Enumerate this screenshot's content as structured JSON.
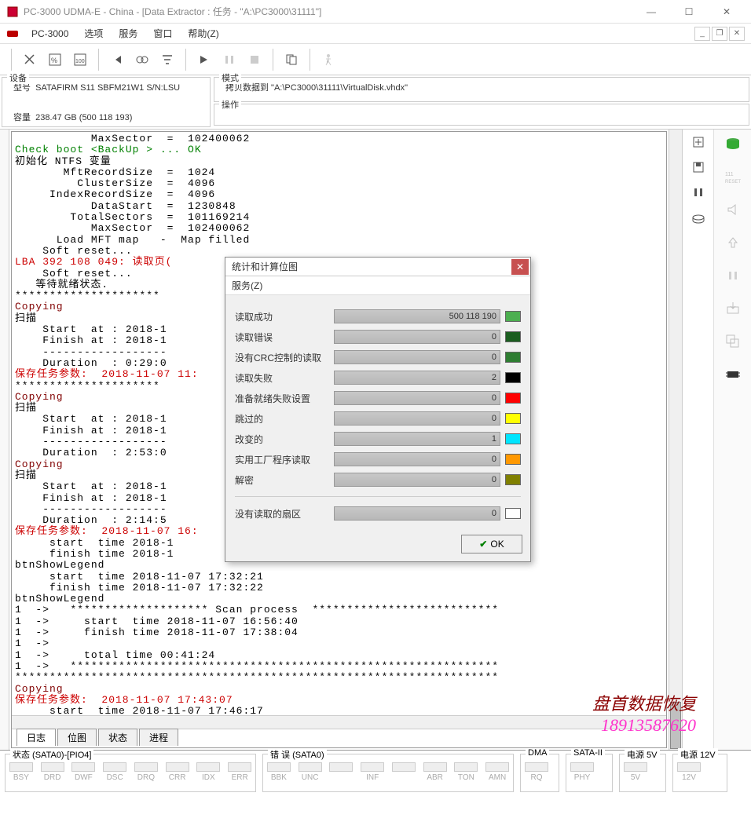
{
  "window": {
    "title": "PC-3000 UDMA-E - China - [Data Extractor : 任务 - \"A:\\PC3000\\31111\"]",
    "min": "—",
    "max": "☐",
    "close": "✕"
  },
  "menu": {
    "app": "PC-3000",
    "items": [
      "选项",
      "服务",
      "窗口",
      "帮助(Z)"
    ]
  },
  "device": {
    "legend": "设备",
    "model_label": "型号",
    "model": "SATAFIRM  S11 SBFM21W1 S/N:LSU",
    "capacity_label": "容量",
    "capacity": "238.47 GB (500 118 193)"
  },
  "mode": {
    "legend": "模式",
    "line": "拷贝数据到 \"A:\\PC3000\\31111\\VirtualDisk.vhdx\"",
    "op_legend": "操作"
  },
  "log": [
    {
      "t": "           MaxSector  =  102400062",
      "c": ""
    },
    {
      "t": "Check boot <BackUp > ... OK",
      "c": "green"
    },
    {
      "t": "初始化 NTFS 变量",
      "c": ""
    },
    {
      "t": "       MftRecordSize  =  1024",
      "c": ""
    },
    {
      "t": "         ClusterSize  =  4096",
      "c": ""
    },
    {
      "t": "     IndexRecordSize  =  4096",
      "c": ""
    },
    {
      "t": "           DataStart  =  1230848",
      "c": ""
    },
    {
      "t": "        TotalSectors  =  101169214",
      "c": ""
    },
    {
      "t": "           MaxSector  =  102400062",
      "c": ""
    },
    {
      "t": "      Load MFT map   -  Map filled",
      "c": ""
    },
    {
      "t": "    Soft reset...",
      "c": ""
    },
    {
      "t": "LBA 392 108 049: 读取页(                                  4E); Operati",
      "c": "red"
    },
    {
      "t": "",
      "c": ""
    },
    {
      "t": "    Soft reset...",
      "c": ""
    },
    {
      "t": "   等待就绪状态.",
      "c": ""
    },
    {
      "t": "*********************                                    **************",
      "c": ""
    },
    {
      "t": "Copying",
      "c": "maroon"
    },
    {
      "t": "扫描",
      "c": ""
    },
    {
      "t": "    Start  at : 2018-1",
      "c": ""
    },
    {
      "t": "    Finish at : 2018-1",
      "c": ""
    },
    {
      "t": "    ------------------",
      "c": ""
    },
    {
      "t": "    Duration  : 0:29:0",
      "c": ""
    },
    {
      "t": "保存任务参数:  2018-11-07 11:",
      "c": "red"
    },
    {
      "t": "*********************                                    **************",
      "c": ""
    },
    {
      "t": "Copying",
      "c": "maroon"
    },
    {
      "t": "扫描",
      "c": ""
    },
    {
      "t": "    Start  at : 2018-1",
      "c": ""
    },
    {
      "t": "    Finish at : 2018-1",
      "c": ""
    },
    {
      "t": "    ------------------",
      "c": ""
    },
    {
      "t": "    Duration  : 2:53:0",
      "c": ""
    },
    {
      "t": "Copying",
      "c": "maroon"
    },
    {
      "t": "扫描",
      "c": ""
    },
    {
      "t": "    Start  at : 2018-1",
      "c": ""
    },
    {
      "t": "    Finish at : 2018-1",
      "c": ""
    },
    {
      "t": "    ------------------",
      "c": ""
    },
    {
      "t": "    Duration  : 2:14:5",
      "c": ""
    },
    {
      "t": "保存任务参数:  2018-11-07 16:",
      "c": "red"
    },
    {
      "t": "     start  time 2018-1",
      "c": ""
    },
    {
      "t": "     finish time 2018-1",
      "c": ""
    },
    {
      "t": "btnShowLegend",
      "c": ""
    },
    {
      "t": "     start  time 2018-11-07 17:32:21",
      "c": ""
    },
    {
      "t": "     finish time 2018-11-07 17:32:22",
      "c": ""
    },
    {
      "t": "btnShowLegend",
      "c": ""
    },
    {
      "t": "1  ->   ******************** Scan process  ***************************",
      "c": ""
    },
    {
      "t": "1  ->     start  time 2018-11-07 16:56:40",
      "c": ""
    },
    {
      "t": "1  ->     finish time 2018-11-07 17:38:04",
      "c": ""
    },
    {
      "t": "1  ->",
      "c": ""
    },
    {
      "t": "1  ->     total time 00:41:24",
      "c": ""
    },
    {
      "t": "1  ->   **************************************************************",
      "c": ""
    },
    {
      "t": "**********************************************************************",
      "c": ""
    },
    {
      "t": "Copying",
      "c": "maroon"
    },
    {
      "t": "保存任务参数:  2018-11-07 17:43:07",
      "c": "red"
    },
    {
      "t": "     start  time 2018-11-07 17:46:17",
      "c": ""
    },
    {
      "t": "     finish time 2018-11-07 17:46:18",
      "c": ""
    },
    {
      "t": "btnShowLegend",
      "c": ""
    }
  ],
  "tabs": [
    "日志",
    "位图",
    "状态",
    "进程"
  ],
  "active_tab": 0,
  "dialog": {
    "title": "统计和计算位图",
    "menu": "服务(Z)",
    "rows": [
      {
        "label": "读取成功",
        "value": "500 118 190",
        "color": "#4caf50"
      },
      {
        "label": "读取错误",
        "value": "0",
        "color": "#1b5e20"
      },
      {
        "label": "没有CRC控制的读取",
        "value": "0",
        "color": "#2e7d32"
      },
      {
        "label": "读取失败",
        "value": "2",
        "color": "#000000"
      },
      {
        "label": "准备就绪失败设置",
        "value": "0",
        "color": "#ff0000"
      },
      {
        "label": "跳过的",
        "value": "0",
        "color": "#ffff00"
      },
      {
        "label": "改变的",
        "value": "1",
        "color": "#00e5ff"
      },
      {
        "label": "实用工厂程序读取",
        "value": "0",
        "color": "#ff9800"
      },
      {
        "label": "解密",
        "value": "0",
        "color": "#808000"
      }
    ],
    "unread": {
      "label": "没有读取的扇区",
      "value": "0",
      "color": "#ffffff"
    },
    "ok": "OK"
  },
  "status": {
    "sata_legend": "状态 (SATA0)-[PIO4]",
    "err_legend": "错 误 (SATA0)",
    "dma_legend": "DMA",
    "sata2_legend": "SATA-II",
    "pwr5_legend": "电源 5V",
    "pwr12_legend": "电源 12V",
    "sata_leds": [
      "BSY",
      "DRD",
      "DWF",
      "DSC",
      "DRQ",
      "CRR",
      "IDX",
      "ERR"
    ],
    "err_leds": [
      "BBK",
      "UNC",
      "",
      "INF",
      "",
      "ABR",
      "TON",
      "AMN"
    ],
    "dma_led": "RQ",
    "sata2_led": "PHY",
    "pwr5_led": "5V",
    "pwr12_led": "12V"
  },
  "watermark": {
    "line1": "盘首数据恢复",
    "line2": "18913587620"
  }
}
